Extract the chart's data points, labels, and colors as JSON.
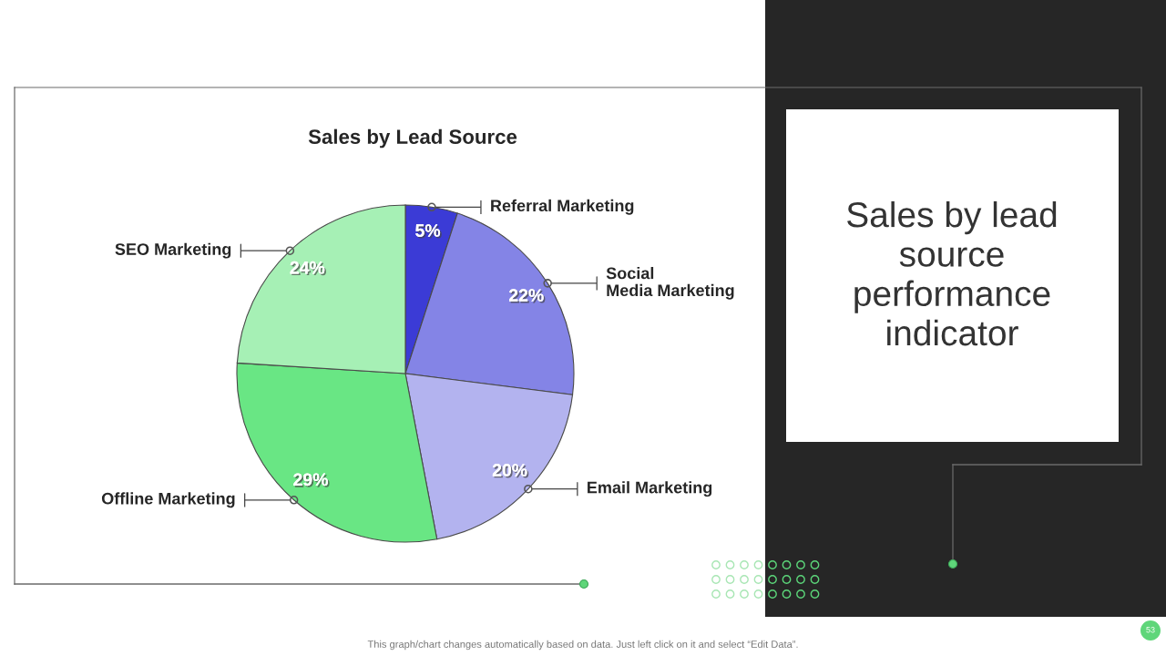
{
  "chart_data": {
    "type": "pie",
    "title": "Sales by Lead Source",
    "categories": [
      "Referral Marketing",
      "Social Media Marketing",
      "Email Marketing",
      "Offline Marketing",
      "SEO Marketing"
    ],
    "values": [
      5,
      22,
      20,
      29,
      24
    ],
    "colors": [
      "#3b3bd6",
      "#8484e6",
      "#b3b3ef",
      "#69e684",
      "#a6f0b5"
    ],
    "value_labels": [
      "5%",
      "22%",
      "20%",
      "29%",
      "24%"
    ],
    "annotations": [
      "Sales by lead source performance indicator",
      "This graph/chart changes automatically based on data. Just left click on it and select “Edit Data”.",
      "53"
    ]
  }
}
